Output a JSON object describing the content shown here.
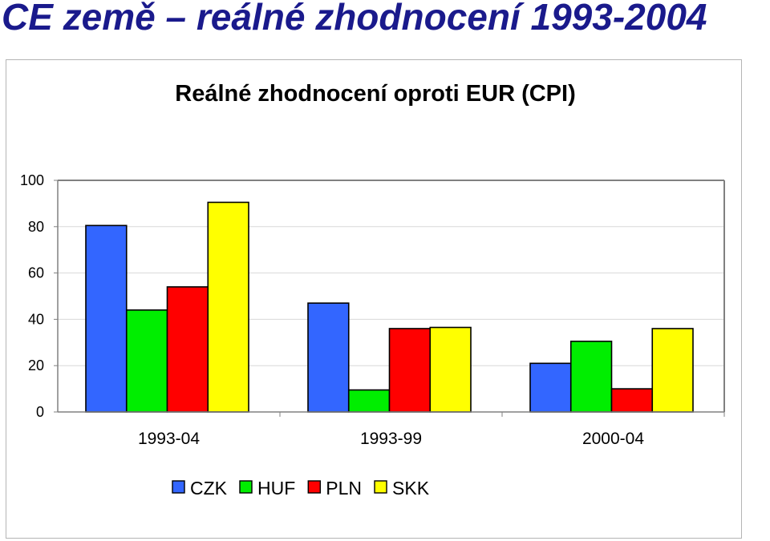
{
  "slide": {
    "title": "CE země – reálné zhodnocení 1993-2004"
  },
  "chart_data": {
    "type": "bar",
    "title": "Reálné zhodnocení oproti EUR (CPI)",
    "xlabel": "",
    "ylabel": "",
    "categories": [
      "1993-04",
      "1993-99",
      "2000-04"
    ],
    "series": [
      {
        "name": "CZK",
        "color": "#3366ff",
        "values": [
          80.5,
          47,
          21
        ]
      },
      {
        "name": "HUF",
        "color": "#00ee00",
        "values": [
          44,
          9.5,
          30.5
        ]
      },
      {
        "name": "PLN",
        "color": "#ff0000",
        "values": [
          54,
          36,
          10
        ]
      },
      {
        "name": "SKK",
        "color": "#ffff00",
        "values": [
          90.5,
          36.5,
          36
        ]
      }
    ],
    "ylim": [
      0,
      100
    ],
    "yticks": [
      0,
      20,
      40,
      60,
      80,
      100
    ],
    "grid": true,
    "legend": "bottom"
  }
}
